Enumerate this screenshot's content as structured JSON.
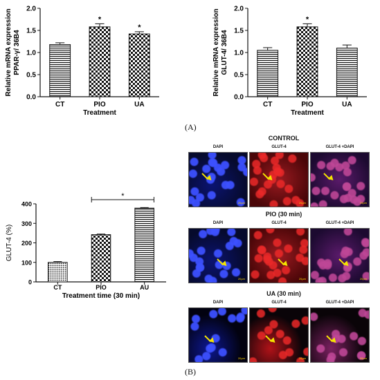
{
  "chart_data": [
    {
      "type": "bar",
      "categories": [
        "CT",
        "PIO",
        "UA"
      ],
      "values": [
        1.18,
        1.58,
        1.42
      ],
      "errors": [
        0.04,
        0.07,
        0.05
      ],
      "significance": [
        "",
        "*",
        "*"
      ],
      "ylabel_lines": [
        "Relative mRNA expression",
        "PPAR-γ/ 36B4"
      ],
      "xlabel": "Treatment",
      "ylim": [
        0,
        2.0
      ],
      "ticks": [
        "0.0",
        "0.5",
        "1.0",
        "1.5",
        "2.0"
      ],
      "tick_values": [
        0,
        0.5,
        1.0,
        1.5,
        2.0
      ],
      "patterns": [
        "hlines",
        "checker",
        "checker"
      ]
    },
    {
      "type": "bar",
      "categories": [
        "CT",
        "PIO",
        "UA"
      ],
      "values": [
        1.05,
        1.58,
        1.1
      ],
      "errors": [
        0.06,
        0.07,
        0.07
      ],
      "significance": [
        "",
        "*",
        ""
      ],
      "ylabel_lines": [
        "Relative mRNA expression",
        "GLUT-4/ 36B4"
      ],
      "xlabel": "Treatment",
      "ylim": [
        0,
        2.0
      ],
      "ticks": [
        "0.0",
        "0.5",
        "1.0",
        "1.5",
        "2.0"
      ],
      "tick_values": [
        0,
        0.5,
        1.0,
        1.5,
        2.0
      ],
      "patterns": [
        "hlines",
        "checker",
        "hlines"
      ]
    },
    {
      "type": "bar",
      "categories": [
        "CT",
        "PIO",
        "AU"
      ],
      "values": [
        100,
        242,
        378
      ],
      "errors": [
        4,
        3,
        3
      ],
      "significance_bracket": {
        "from": 1,
        "to": 2,
        "label": "*"
      },
      "ylabel": "GLUT-4 (%)",
      "xlabel": "Treatment time (30 min)",
      "ylim": [
        0,
        400
      ],
      "ticks": [
        "0",
        "100",
        "200",
        "300",
        "400"
      ],
      "tick_values": [
        0,
        100,
        200,
        300,
        400
      ],
      "patterns": [
        "dots",
        "checker",
        "hlines"
      ]
    }
  ],
  "panel_a_label": "(A)",
  "panel_b_label": "(B)",
  "microscopy": {
    "rows": [
      {
        "title": "CONTROL",
        "labels": [
          "DAPI",
          "GLUT-4",
          "GLUT-4 +DAPI"
        ],
        "scale": "20µm"
      },
      {
        "title": "PIO (30 min)",
        "labels": [
          "DAPI",
          "GLUT-4",
          "GLUT-4 +DAPI"
        ],
        "scale": "20µm"
      },
      {
        "title": "UA (30 min)",
        "labels": [
          "DAPI",
          "GLUT-4",
          "GLUT-4 +DAPI"
        ],
        "scale": "20µm"
      }
    ],
    "colors": {
      "dapi": "#1a2bd6",
      "glut4": "#c8141b",
      "merge": "#b02a7a",
      "background": "#050514",
      "arrow": "#f5e400"
    }
  }
}
